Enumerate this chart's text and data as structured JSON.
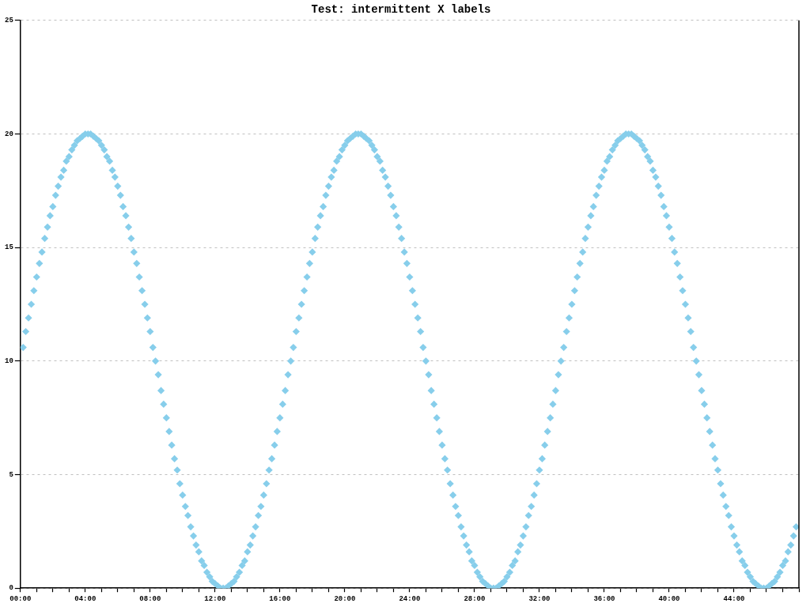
{
  "chart_data": {
    "type": "scatter",
    "title": "Test: intermittent X labels",
    "color": "#87ceeb",
    "marker": "diamond",
    "grid": "y",
    "xlim": [
      0,
      48
    ],
    "ylim": [
      0,
      25
    ],
    "yticks": [
      0,
      5,
      10,
      15,
      20,
      25
    ],
    "xticks": [
      {
        "value": 0,
        "label": "00:00"
      },
      {
        "value": 1,
        "label": null
      },
      {
        "value": 2,
        "label": null
      },
      {
        "value": 3,
        "label": null
      },
      {
        "value": 4,
        "label": "04:00"
      },
      {
        "value": 5,
        "label": null
      },
      {
        "value": 6,
        "label": null
      },
      {
        "value": 7,
        "label": null
      },
      {
        "value": 8,
        "label": "08:00"
      },
      {
        "value": 9,
        "label": null
      },
      {
        "value": 10,
        "label": null
      },
      {
        "value": 11,
        "label": null
      },
      {
        "value": 12,
        "label": "12:00"
      },
      {
        "value": 13,
        "label": null
      },
      {
        "value": 14,
        "label": null
      },
      {
        "value": 15,
        "label": null
      },
      {
        "value": 16,
        "label": "16:00"
      },
      {
        "value": 17,
        "label": null
      },
      {
        "value": 18,
        "label": null
      },
      {
        "value": 19,
        "label": null
      },
      {
        "value": 20,
        "label": "20:00"
      },
      {
        "value": 21,
        "label": null
      },
      {
        "value": 22,
        "label": null
      },
      {
        "value": 23,
        "label": null
      },
      {
        "value": 24,
        "label": "24:00"
      },
      {
        "value": 25,
        "label": null
      },
      {
        "value": 26,
        "label": null
      },
      {
        "value": 27,
        "label": null
      },
      {
        "value": 28,
        "label": "28:00"
      },
      {
        "value": 29,
        "label": null
      },
      {
        "value": 30,
        "label": null
      },
      {
        "value": 31,
        "label": null
      },
      {
        "value": 32,
        "label": "32:00"
      },
      {
        "value": 33,
        "label": null
      },
      {
        "value": 34,
        "label": null
      },
      {
        "value": 35,
        "label": null
      },
      {
        "value": 36,
        "label": "36:00"
      },
      {
        "value": 37,
        "label": null
      },
      {
        "value": 38,
        "label": null
      },
      {
        "value": 39,
        "label": null
      },
      {
        "value": 40,
        "label": "40:00"
      },
      {
        "value": 41,
        "label": null
      },
      {
        "value": 42,
        "label": null
      },
      {
        "value": 43,
        "label": null
      },
      {
        "value": 44,
        "label": "44:00"
      },
      {
        "value": 45,
        "label": null
      },
      {
        "value": 46,
        "label": null
      },
      {
        "value": 47,
        "label": null
      },
      {
        "value": 48,
        "label": null
      }
    ],
    "x": [
      0.17,
      0.33,
      0.5,
      0.67,
      0.83,
      1,
      1.17,
      1.33,
      1.5,
      1.67,
      1.83,
      2,
      2.17,
      2.33,
      2.5,
      2.67,
      2.83,
      3,
      3.17,
      3.33,
      3.5,
      3.67,
      3.83,
      4,
      4.17,
      4.33,
      4.5,
      4.67,
      4.83,
      5,
      5.17,
      5.33,
      5.5,
      5.67,
      5.83,
      6,
      6.17,
      6.33,
      6.5,
      6.67,
      6.83,
      7,
      7.17,
      7.33,
      7.5,
      7.67,
      7.83,
      8,
      8.17,
      8.33,
      8.5,
      8.67,
      8.83,
      9,
      9.17,
      9.33,
      9.5,
      9.67,
      9.83,
      10,
      10.17,
      10.33,
      10.5,
      10.67,
      10.83,
      11,
      11.17,
      11.33,
      11.5,
      11.67,
      11.83,
      12,
      12.17,
      12.33,
      12.5,
      12.67,
      12.83,
      13,
      13.17,
      13.33,
      13.5,
      13.67,
      13.83,
      14,
      14.17,
      14.33,
      14.5,
      14.67,
      14.83,
      15,
      15.17,
      15.33,
      15.5,
      15.67,
      15.83,
      16,
      16.17,
      16.33,
      16.5,
      16.67,
      16.83,
      17,
      17.17,
      17.33,
      17.5,
      17.67,
      17.83,
      18,
      18.17,
      18.33,
      18.5,
      18.67,
      18.83,
      19,
      19.17,
      19.33,
      19.5,
      19.67,
      19.83,
      20,
      20.17,
      20.33,
      20.5,
      20.67,
      20.83,
      21,
      21.17,
      21.33,
      21.5,
      21.67,
      21.83,
      22,
      22.17,
      22.33,
      22.5,
      22.67,
      22.83,
      23,
      23.17,
      23.33,
      23.5,
      23.67,
      23.83,
      24,
      24.17,
      24.33,
      24.5,
      24.67,
      24.83,
      25,
      25.17,
      25.33,
      25.5,
      25.67,
      25.83,
      26,
      26.17,
      26.33,
      26.5,
      26.67,
      26.83,
      27,
      27.17,
      27.33,
      27.5,
      27.67,
      27.83,
      28,
      28.17,
      28.33,
      28.5,
      28.67,
      28.83,
      29,
      29.17,
      29.33,
      29.5,
      29.67,
      29.83,
      30,
      30.17,
      30.33,
      30.5,
      30.67,
      30.83,
      31,
      31.17,
      31.33,
      31.5,
      31.67,
      31.83,
      32,
      32.17,
      32.33,
      32.5,
      32.67,
      32.83,
      33,
      33.17,
      33.33,
      33.5,
      33.67,
      33.83,
      34,
      34.17,
      34.33,
      34.5,
      34.67,
      34.83,
      35,
      35.17,
      35.33,
      35.5,
      35.67,
      35.83,
      36,
      36.17,
      36.33,
      36.5,
      36.67,
      36.83,
      37,
      37.17,
      37.33,
      37.5,
      37.67,
      37.83,
      38,
      38.17,
      38.33,
      38.5,
      38.67,
      38.83,
      39,
      39.17,
      39.33,
      39.5,
      39.67,
      39.83,
      40,
      40.17,
      40.33,
      40.5,
      40.67,
      40.83,
      41,
      41.17,
      41.33,
      41.5,
      41.67,
      41.83,
      42,
      42.17,
      42.33,
      42.5,
      42.67,
      42.83,
      43,
      43.17,
      43.33,
      43.5,
      43.67,
      43.83,
      44,
      44.17,
      44.33,
      44.5,
      44.67,
      44.83,
      45,
      45.17,
      45.33,
      45.5,
      45.67,
      45.83,
      46,
      46.17,
      46.33,
      46.5,
      46.67,
      46.83,
      47,
      47.17,
      47.33,
      47.5,
      47.67,
      47.83
    ],
    "values": [
      10.6,
      11.3,
      11.9,
      12.5,
      13.1,
      13.7,
      14.3,
      14.8,
      15.4,
      15.9,
      16.4,
      16.8,
      17.3,
      17.7,
      18.1,
      18.4,
      18.8,
      19,
      19.3,
      19.5,
      19.7,
      19.8,
      19.9,
      20,
      20,
      20,
      19.9,
      19.8,
      19.7,
      19.5,
      19.3,
      19,
      18.8,
      18.4,
      18.1,
      17.7,
      17.3,
      16.8,
      16.4,
      15.9,
      15.4,
      14.8,
      14.3,
      13.7,
      13.1,
      12.5,
      11.9,
      11.3,
      10.6,
      10,
      9.4,
      8.7,
      8.1,
      7.5,
      6.9,
      6.3,
      5.7,
      5.2,
      4.6,
      4.1,
      3.6,
      3.2,
      2.7,
      2.3,
      1.9,
      1.6,
      1.2,
      1,
      0.7,
      0.5,
      0.3,
      0.2,
      0.1,
      0,
      0,
      0,
      0.1,
      0.2,
      0.3,
      0.5,
      0.7,
      1,
      1.2,
      1.6,
      1.9,
      2.3,
      2.7,
      3.2,
      3.6,
      4.1,
      4.6,
      5.2,
      5.7,
      6.3,
      6.9,
      7.5,
      8.1,
      8.7,
      9.4,
      10,
      10.6,
      11.3,
      11.9,
      12.5,
      13.1,
      13.7,
      14.3,
      14.8,
      15.4,
      15.9,
      16.4,
      16.8,
      17.3,
      17.7,
      18.1,
      18.4,
      18.8,
      19,
      19.3,
      19.5,
      19.7,
      19.8,
      19.9,
      20,
      20,
      20,
      19.9,
      19.8,
      19.7,
      19.5,
      19.3,
      19,
      18.8,
      18.4,
      18.1,
      17.7,
      17.3,
      16.8,
      16.4,
      15.9,
      15.4,
      14.8,
      14.3,
      13.7,
      13.1,
      12.5,
      11.9,
      11.3,
      10.6,
      10,
      9.4,
      8.7,
      8.1,
      7.5,
      6.9,
      6.3,
      5.7,
      5.2,
      4.6,
      4.1,
      3.6,
      3.2,
      2.7,
      2.3,
      1.9,
      1.6,
      1.2,
      1,
      0.7,
      0.5,
      0.3,
      0.2,
      0.1,
      0,
      0,
      0,
      0.1,
      0.2,
      0.3,
      0.5,
      0.7,
      1,
      1.2,
      1.6,
      1.9,
      2.3,
      2.7,
      3.2,
      3.6,
      4.1,
      4.6,
      5.2,
      5.7,
      6.3,
      6.9,
      7.5,
      8.1,
      8.7,
      9.4,
      10,
      10.6,
      11.3,
      11.9,
      12.5,
      13.1,
      13.7,
      14.3,
      14.8,
      15.4,
      15.9,
      16.4,
      16.8,
      17.3,
      17.7,
      18.1,
      18.4,
      18.8,
      19,
      19.3,
      19.5,
      19.7,
      19.8,
      19.9,
      20,
      20,
      20,
      19.9,
      19.8,
      19.7,
      19.5,
      19.3,
      19,
      18.8,
      18.4,
      18.1,
      17.7,
      17.3,
      16.8,
      16.4,
      15.9,
      15.4,
      14.8,
      14.3,
      13.7,
      13.1,
      12.5,
      11.9,
      11.3,
      10.6,
      10,
      9.4,
      8.7,
      8.1,
      7.5,
      6.9,
      6.3,
      5.7,
      5.2,
      4.6,
      4.1,
      3.6,
      3.2,
      2.7,
      2.3,
      1.9,
      1.6,
      1.2,
      1,
      0.7,
      0.5,
      0.3,
      0.2,
      0.1,
      0,
      0,
      0,
      0.1,
      0.2,
      0.3,
      0.5,
      0.7,
      1,
      1.2,
      1.6,
      1.9,
      2.3,
      2.7
    ]
  }
}
